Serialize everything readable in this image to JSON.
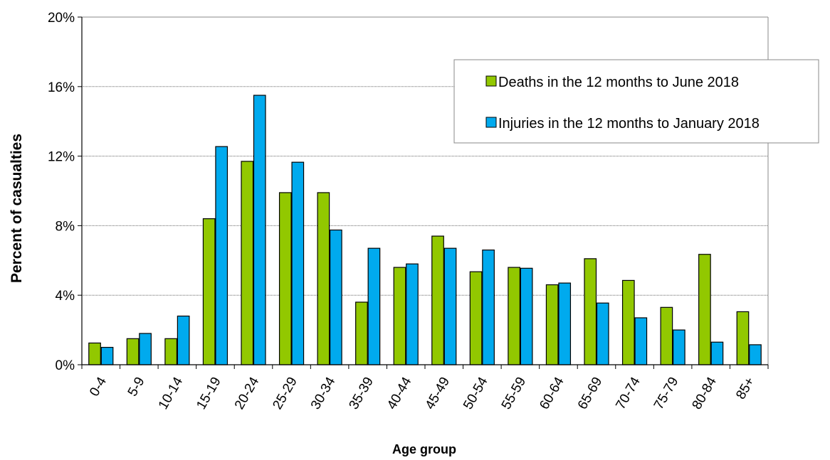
{
  "chart_data": {
    "type": "bar",
    "title": "",
    "xlabel": "Age group",
    "ylabel": "Percent of casualties",
    "categories": [
      "0-4",
      "5-9",
      "10-14",
      "15-19",
      "20-24",
      "25-29",
      "30-34",
      "35-39",
      "40-44",
      "45-49",
      "50-54",
      "55-59",
      "60-64",
      "65-69",
      "70-74",
      "75-79",
      "80-84",
      "85+"
    ],
    "series": [
      {
        "name": "Deaths in the 12 months to June 2018",
        "color": "#92C800",
        "values": [
          1.25,
          1.5,
          1.5,
          8.4,
          11.7,
          9.9,
          9.9,
          3.6,
          5.6,
          7.4,
          5.35,
          5.6,
          4.6,
          6.1,
          4.85,
          3.3,
          6.35,
          3.05
        ]
      },
      {
        "name": "Injuries in the 12 months to January 2018",
        "color": "#00AAEE",
        "values": [
          1.0,
          1.8,
          2.8,
          12.55,
          15.5,
          11.65,
          7.75,
          6.7,
          5.8,
          6.7,
          6.6,
          5.55,
          4.7,
          3.55,
          2.7,
          2.0,
          1.3,
          1.15
        ]
      }
    ],
    "ylim": [
      0,
      20
    ],
    "yticks": [
      0,
      4,
      8,
      12,
      16,
      20
    ],
    "ytick_format": "%",
    "grid": true,
    "legend_position": "top-right"
  }
}
